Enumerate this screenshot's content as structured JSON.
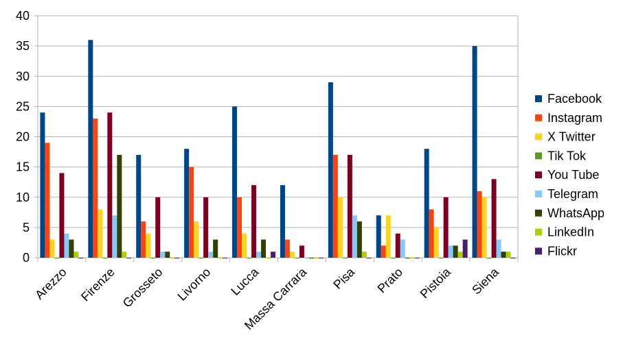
{
  "chart_data": {
    "type": "bar",
    "categories": [
      "Arezzo",
      "Firenze",
      "Grosseto",
      "Livorno",
      "Lucca",
      "Massa Carrara",
      "Pisa",
      "Prato",
      "Pistoia",
      "Siena"
    ],
    "series": [
      {
        "name": "Facebook",
        "color": "#004586",
        "values": [
          24,
          36,
          17,
          18,
          25,
          12,
          29,
          7,
          18,
          35
        ]
      },
      {
        "name": "Instagram",
        "color": "#ff420e",
        "values": [
          19,
          23,
          6,
          15,
          10,
          3,
          17,
          2,
          8,
          11
        ]
      },
      {
        "name": "X Twitter",
        "color": "#ffd320",
        "values": [
          3,
          8,
          4,
          6,
          4,
          1,
          10,
          7,
          5,
          10
        ]
      },
      {
        "name": "Tik Tok",
        "color": "#579d1c",
        "values": [
          0,
          0,
          0,
          0,
          0,
          0,
          0,
          0,
          0,
          0
        ]
      },
      {
        "name": "You Tube",
        "color": "#7e0021",
        "values": [
          14,
          24,
          10,
          10,
          12,
          2,
          17,
          4,
          10,
          13
        ]
      },
      {
        "name": "Telegram",
        "color": "#83caff",
        "values": [
          4,
          7,
          1,
          1,
          1,
          0,
          7,
          3,
          2,
          3
        ]
      },
      {
        "name": "WhatsApp",
        "color": "#314004",
        "values": [
          3,
          17,
          1,
          3,
          3,
          0,
          6,
          0,
          2,
          1
        ]
      },
      {
        "name": "LinkedIn",
        "color": "#aecf00",
        "values": [
          1,
          1,
          0,
          0,
          0,
          0,
          1,
          0,
          1,
          1
        ]
      },
      {
        "name": "Flickr",
        "color": "#4b1f6f",
        "values": [
          0,
          0,
          0,
          0,
          1,
          0,
          0,
          0,
          3,
          0
        ]
      }
    ],
    "ylim": [
      0,
      40
    ],
    "yticks": [
      0,
      5,
      10,
      15,
      20,
      25,
      30,
      35,
      40
    ],
    "grid": true,
    "legend": "right"
  }
}
